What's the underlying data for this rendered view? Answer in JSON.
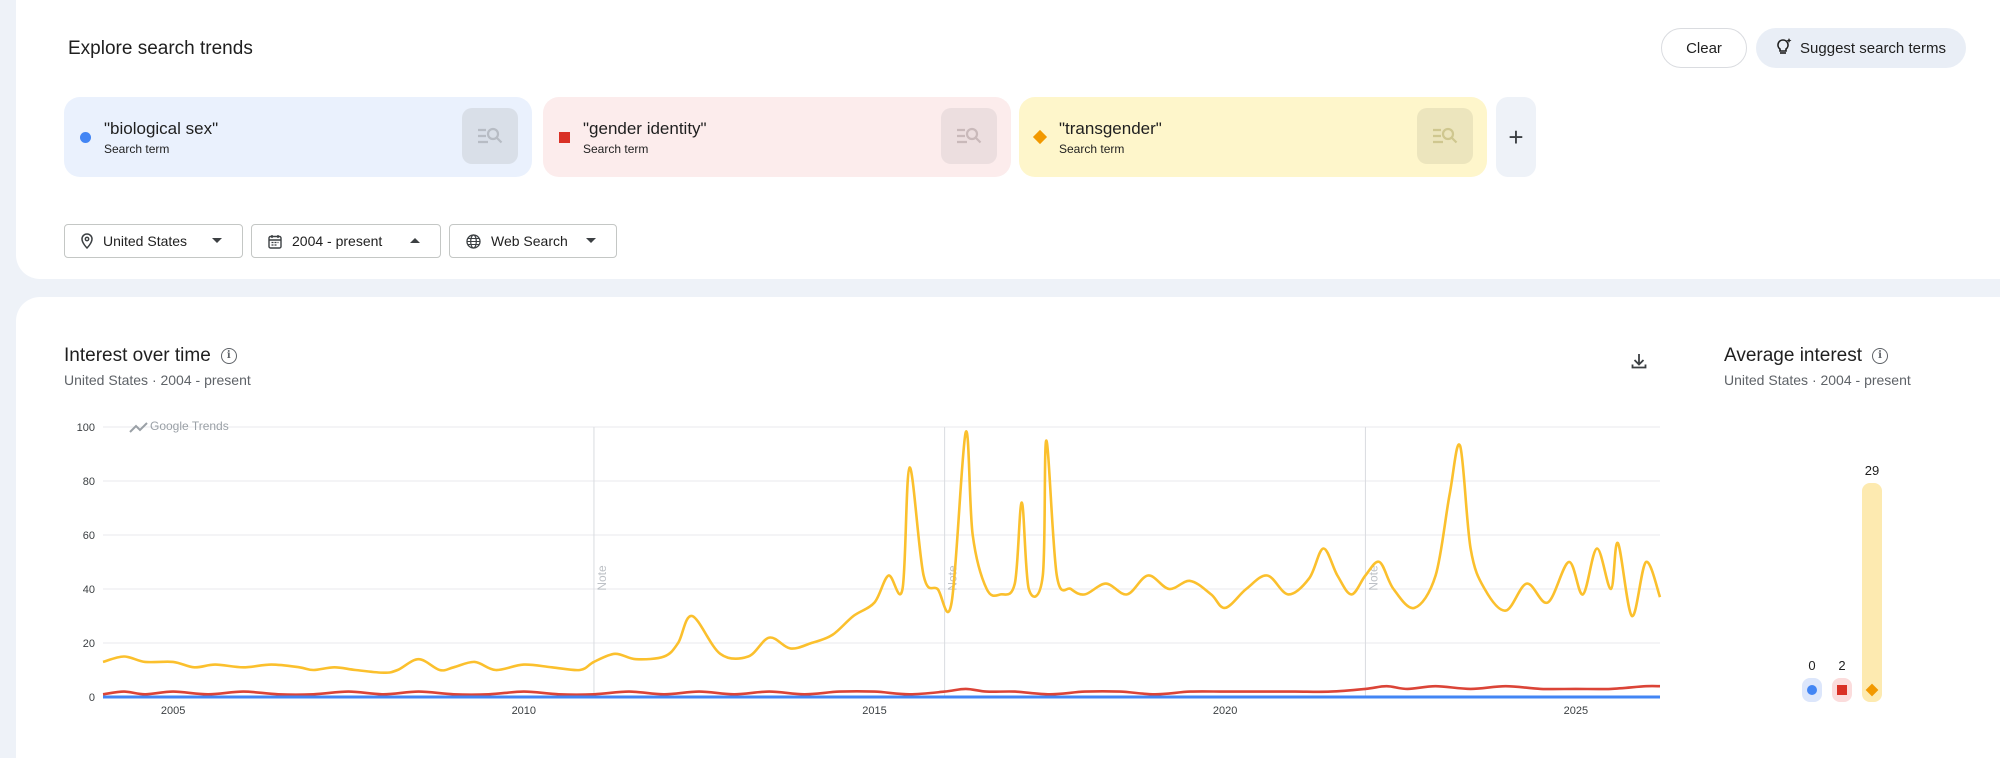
{
  "header": {
    "title": "Explore search trends",
    "clear_label": "Clear",
    "suggest_label": "Suggest search terms"
  },
  "terms": [
    {
      "name": "\"biological sex\"",
      "type": "Search term",
      "color": "#4285f4",
      "marker": "circle"
    },
    {
      "name": "\"gender identity\"",
      "type": "Search term",
      "color": "#d93025",
      "marker": "square"
    },
    {
      "name": "\"transgender\"",
      "type": "Search term",
      "color": "#f29900",
      "marker": "diamond"
    }
  ],
  "add_term_label": "+",
  "filters": {
    "location": "United States",
    "time": "2004 - present",
    "search_type": "Web Search"
  },
  "interest_over_time": {
    "title": "Interest over time",
    "subtitle": "United States · 2004 - present",
    "watermark": "Google Trends",
    "note_label": "Note"
  },
  "average_interest": {
    "title": "Average interest",
    "subtitle": "United States · 2004 - present"
  },
  "chart_data": [
    {
      "type": "line",
      "title": "Interest over time",
      "xlabel": "",
      "ylabel": "",
      "xlim": [
        2004.0,
        2026.2
      ],
      "ylim": [
        0,
        100
      ],
      "y_ticks": [
        0,
        20,
        40,
        60,
        80,
        100
      ],
      "x_ticks": [
        "2005",
        "2010",
        "2015",
        "2020",
        "2025"
      ],
      "notes_at": [
        2011.0,
        2016.0,
        2022.0
      ],
      "grid": true,
      "series": [
        {
          "name": "\"biological sex\"",
          "color": "#4285f4",
          "x": [
            2004.0,
            2026.2
          ],
          "y": [
            0,
            0
          ]
        },
        {
          "name": "\"gender identity\"",
          "color": "#db4437",
          "x": [
            2004.0,
            2004.3,
            2004.6,
            2005.0,
            2005.5,
            2006.0,
            2006.5,
            2007.0,
            2007.5,
            2008.0,
            2008.5,
            2009.0,
            2009.5,
            2010.0,
            2010.5,
            2011.0,
            2011.5,
            2012.0,
            2012.5,
            2013.0,
            2013.5,
            2014.0,
            2014.5,
            2015.0,
            2015.5,
            2016.0,
            2016.3,
            2016.6,
            2017.0,
            2017.5,
            2018.0,
            2018.5,
            2019.0,
            2019.5,
            2020.0,
            2020.5,
            2021.0,
            2021.5,
            2022.0,
            2022.3,
            2022.6,
            2023.0,
            2023.5,
            2024.0,
            2024.5,
            2025.0,
            2025.5,
            2026.0,
            2026.2
          ],
          "y": [
            1,
            2,
            1,
            2,
            1,
            2,
            1,
            1,
            2,
            1,
            2,
            1,
            1,
            2,
            1,
            1,
            2,
            1,
            2,
            1,
            2,
            1,
            2,
            2,
            1,
            2,
            3,
            2,
            2,
            1,
            2,
            2,
            1,
            2,
            2,
            2,
            2,
            2,
            3,
            4,
            3,
            4,
            3,
            4,
            3,
            3,
            3,
            4,
            4
          ]
        },
        {
          "name": "\"transgender\"",
          "color": "#fbc02d",
          "x": [
            2004.0,
            2004.3,
            2004.6,
            2005.0,
            2005.3,
            2005.6,
            2006.0,
            2006.4,
            2006.8,
            2007.0,
            2007.3,
            2007.6,
            2008.0,
            2008.2,
            2008.5,
            2008.8,
            2009.0,
            2009.3,
            2009.6,
            2010.0,
            2010.4,
            2010.8,
            2011.0,
            2011.3,
            2011.6,
            2012.0,
            2012.2,
            2012.4,
            2012.8,
            2013.2,
            2013.5,
            2013.8,
            2014.1,
            2014.4,
            2014.7,
            2015.0,
            2015.2,
            2015.4,
            2015.5,
            2015.7,
            2015.9,
            2016.1,
            2016.3,
            2016.4,
            2016.6,
            2016.8,
            2017.0,
            2017.1,
            2017.2,
            2017.4,
            2017.45,
            2017.6,
            2017.8,
            2018.0,
            2018.3,
            2018.6,
            2018.9,
            2019.2,
            2019.5,
            2019.8,
            2020.0,
            2020.3,
            2020.6,
            2020.9,
            2021.2,
            2021.4,
            2021.6,
            2021.8,
            2022.0,
            2022.2,
            2022.4,
            2022.7,
            2023.0,
            2023.2,
            2023.35,
            2023.5,
            2023.7,
            2024.0,
            2024.3,
            2024.6,
            2024.9,
            2025.1,
            2025.3,
            2025.5,
            2025.6,
            2025.8,
            2026.0,
            2026.2
          ],
          "y": [
            13,
            15,
            13,
            13,
            11,
            12,
            11,
            12,
            11,
            10,
            11,
            10,
            9,
            10,
            14,
            10,
            11,
            13,
            10,
            12,
            11,
            10,
            13,
            16,
            14,
            15,
            20,
            30,
            16,
            15,
            22,
            18,
            20,
            23,
            30,
            35,
            45,
            40,
            85,
            45,
            40,
            35,
            98,
            60,
            40,
            38,
            42,
            72,
            40,
            45,
            95,
            45,
            40,
            38,
            42,
            38,
            45,
            40,
            43,
            38,
            33,
            40,
            45,
            38,
            44,
            55,
            45,
            38,
            45,
            50,
            40,
            33,
            45,
            75,
            93,
            55,
            40,
            32,
            42,
            35,
            50,
            38,
            55,
            40,
            57,
            30,
            50,
            37
          ]
        }
      ]
    },
    {
      "type": "bar",
      "title": "Average interest",
      "categories": [
        "\"biological sex\"",
        "\"gender identity\"",
        "\"transgender\""
      ],
      "values": [
        0,
        2,
        29
      ],
      "colors": [
        "#4285f4",
        "#d93025",
        "#f29900"
      ],
      "ylim": [
        0,
        29
      ]
    }
  ]
}
